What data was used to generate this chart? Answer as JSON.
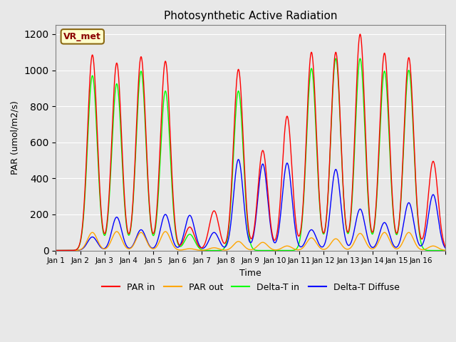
{
  "title": "Photosynthetic Active Radiation",
  "xlabel": "Time",
  "ylabel": "PAR (umol/m2/s)",
  "ylim": [
    0,
    1250
  ],
  "yticks": [
    0,
    200,
    400,
    600,
    800,
    1000,
    1200
  ],
  "background_color": "#e8e8e8",
  "plot_bg_color": "#e8e8e8",
  "legend_labels": [
    "PAR in",
    "PAR out",
    "Delta-T in",
    "Delta-T Diffuse"
  ],
  "watermark_text": "VR_met",
  "watermark_fg": "#8B0000",
  "watermark_bg": "#ffffcc",
  "xtick_positions": [
    0,
    1,
    2,
    3,
    4,
    5,
    6,
    7,
    8,
    9,
    10,
    11,
    12,
    13,
    14,
    15,
    16
  ],
  "xtick_labels": [
    "Jan 1",
    "Jan 2",
    "Jan 3",
    "Jan 4",
    "Jan 5",
    "Jan 6",
    "Jan 7",
    "Jan 8",
    "Jan 9",
    "Jan 10",
    "Jan 11",
    "Jan 12",
    "Jan 13",
    "Jan 14",
    "Jan 15",
    "Jan 16",
    ""
  ],
  "days": 16,
  "par_in_peaks": [
    0,
    1085,
    1040,
    1075,
    1050,
    130,
    220,
    1005,
    555,
    745,
    1100,
    1100,
    1200,
    1095,
    1070,
    495
  ],
  "par_out_peaks": [
    0,
    100,
    105,
    100,
    105,
    10,
    15,
    50,
    45,
    25,
    70,
    65,
    95,
    100,
    100,
    25
  ],
  "delta_in_peaks": [
    0,
    970,
    925,
    995,
    885,
    90,
    0,
    885,
    0,
    0,
    1010,
    1065,
    1065,
    995,
    1000,
    0
  ],
  "delta_diff_peaks": [
    0,
    75,
    185,
    115,
    200,
    195,
    100,
    505,
    480,
    485,
    115,
    450,
    230,
    155,
    265,
    310
  ]
}
